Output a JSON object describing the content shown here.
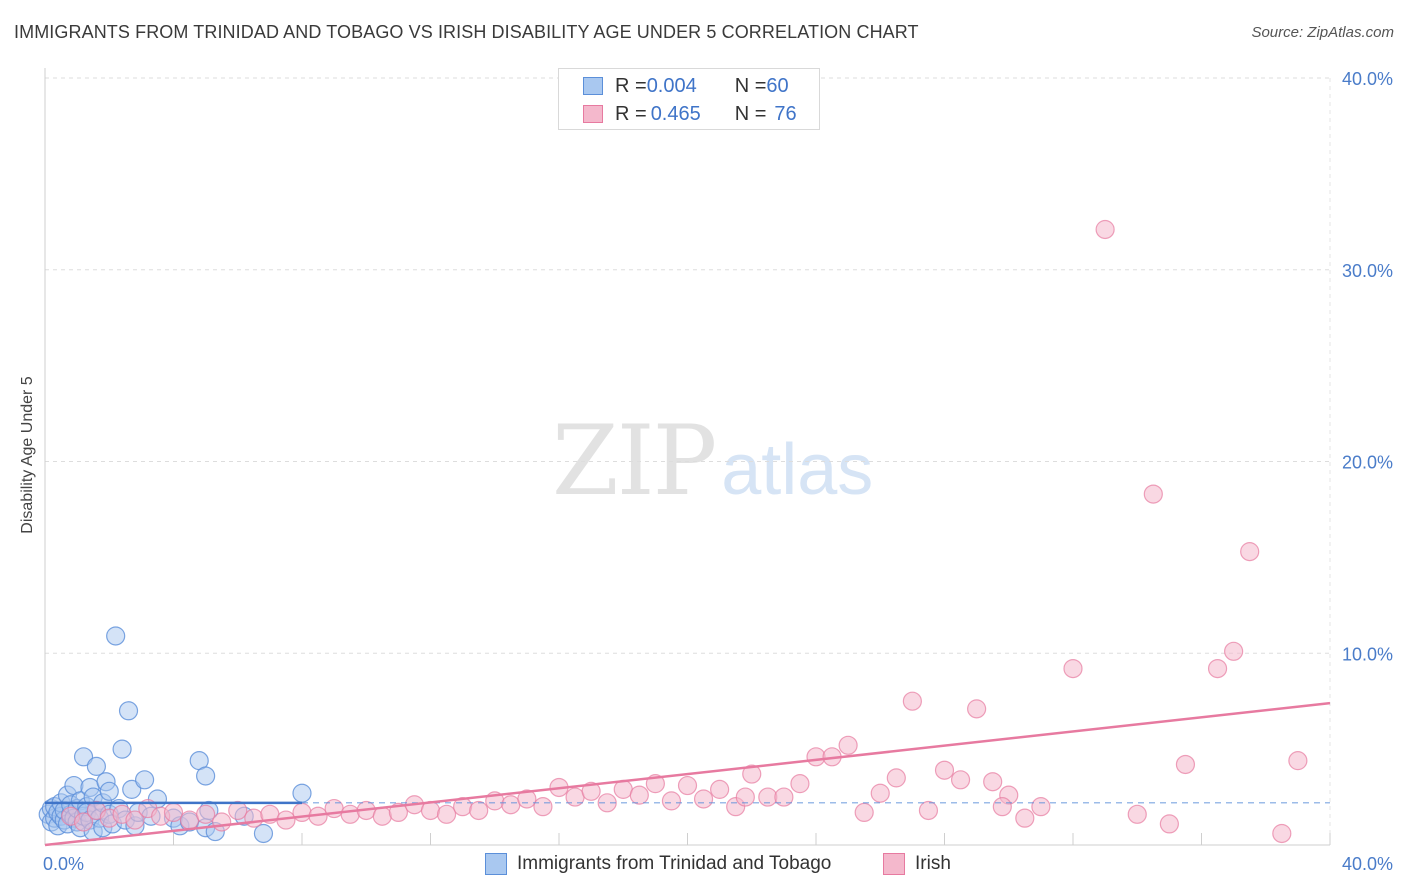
{
  "title": "IMMIGRANTS FROM TRINIDAD AND TOBAGO VS IRISH DISABILITY AGE UNDER 5 CORRELATION CHART",
  "source": "Source: ZipAtlas.com",
  "watermark": {
    "zip": "ZIP",
    "atlas": "atlas"
  },
  "legend": {
    "rows": [
      {
        "r_label": "R = ",
        "r_value": "0.004",
        "n_label": "N = ",
        "n_value": "60"
      },
      {
        "r_label": "R = ",
        "r_value": "0.465",
        "n_label": "N = ",
        "n_value": "76"
      }
    ]
  },
  "bottom_legend": [
    "Immigrants from Trinidad and Tobago",
    "Irish"
  ],
  "chart_data": {
    "type": "scatter",
    "ylabel": "Disability Age Under 5",
    "xlim": [
      0,
      40
    ],
    "ylim": [
      0,
      40
    ],
    "x_tick_labels": [
      "0.0%",
      "40.0%"
    ],
    "y_tick_labels": [
      "10.0%",
      "20.0%",
      "30.0%",
      "40.0%"
    ],
    "y_ticks": [
      10,
      20,
      30,
      40
    ],
    "grid": true,
    "legend_position": "top-center",
    "colors": {
      "blue": "#5b8fd9",
      "blue_fill": "#a9c8f0",
      "pink": "#e77aa0",
      "pink_fill": "#f4b8cc"
    },
    "series": [
      {
        "name": "Immigrants from Trinidad and Tobago",
        "color": "#5b8fd9",
        "trend": {
          "x": [
            0,
            8
          ],
          "y": [
            2.2,
            2.2
          ],
          "dashed_extension_to": 40
        },
        "points": [
          [
            0.1,
            1.6
          ],
          [
            0.2,
            1.2
          ],
          [
            0.2,
            1.9
          ],
          [
            0.3,
            1.4
          ],
          [
            0.3,
            2.0
          ],
          [
            0.4,
            1.0
          ],
          [
            0.4,
            1.7
          ],
          [
            0.5,
            1.5
          ],
          [
            0.5,
            2.2
          ],
          [
            0.6,
            1.3
          ],
          [
            0.6,
            1.8
          ],
          [
            0.7,
            1.1
          ],
          [
            0.7,
            2.6
          ],
          [
            0.8,
            1.6
          ],
          [
            0.8,
            2.1
          ],
          [
            0.9,
            1.4
          ],
          [
            0.9,
            3.1
          ],
          [
            1.0,
            1.2
          ],
          [
            1.0,
            1.9
          ],
          [
            1.1,
            2.3
          ],
          [
            1.1,
            0.9
          ],
          [
            1.2,
            1.5
          ],
          [
            1.2,
            4.6
          ],
          [
            1.3,
            2.0
          ],
          [
            1.3,
            1.7
          ],
          [
            1.4,
            3.0
          ],
          [
            1.4,
            1.3
          ],
          [
            1.5,
            2.5
          ],
          [
            1.5,
            0.7
          ],
          [
            1.6,
            1.8
          ],
          [
            1.6,
            4.1
          ],
          [
            1.7,
            1.4
          ],
          [
            1.8,
            2.2
          ],
          [
            1.8,
            0.9
          ],
          [
            1.9,
            3.3
          ],
          [
            2.0,
            1.6
          ],
          [
            2.0,
            2.8
          ],
          [
            2.1,
            1.1
          ],
          [
            2.2,
            10.9
          ],
          [
            2.3,
            1.9
          ],
          [
            2.4,
            5.0
          ],
          [
            2.5,
            1.3
          ],
          [
            2.6,
            7.0
          ],
          [
            2.7,
            2.9
          ],
          [
            2.8,
            1.0
          ],
          [
            2.9,
            1.7
          ],
          [
            3.1,
            3.4
          ],
          [
            3.3,
            1.5
          ],
          [
            3.5,
            2.4
          ],
          [
            4.0,
            1.4
          ],
          [
            4.2,
            1.0
          ],
          [
            4.5,
            1.2
          ],
          [
            5.0,
            0.9
          ],
          [
            4.8,
            4.4
          ],
          [
            5.0,
            3.6
          ],
          [
            5.1,
            1.8
          ],
          [
            5.3,
            0.7
          ],
          [
            6.2,
            1.5
          ],
          [
            6.8,
            0.6
          ],
          [
            8.0,
            2.7
          ]
        ]
      },
      {
        "name": "Irish",
        "color": "#e77aa0",
        "trend": {
          "x": [
            0,
            40
          ],
          "y": [
            0,
            7.4
          ]
        },
        "points": [
          [
            0.8,
            1.5
          ],
          [
            1.2,
            1.2
          ],
          [
            1.6,
            1.8
          ],
          [
            2.0,
            1.4
          ],
          [
            2.4,
            1.6
          ],
          [
            2.8,
            1.3
          ],
          [
            3.2,
            1.9
          ],
          [
            3.6,
            1.5
          ],
          [
            4.0,
            1.7
          ],
          [
            4.5,
            1.3
          ],
          [
            5.0,
            1.6
          ],
          [
            5.5,
            1.2
          ],
          [
            6.0,
            1.8
          ],
          [
            6.5,
            1.4
          ],
          [
            7.0,
            1.6
          ],
          [
            7.5,
            1.3
          ],
          [
            8.0,
            1.7
          ],
          [
            8.5,
            1.5
          ],
          [
            9.0,
            1.9
          ],
          [
            9.5,
            1.6
          ],
          [
            10.0,
            1.8
          ],
          [
            10.5,
            1.5
          ],
          [
            11.0,
            1.7
          ],
          [
            11.5,
            2.1
          ],
          [
            12.0,
            1.8
          ],
          [
            12.5,
            1.6
          ],
          [
            13.0,
            2.0
          ],
          [
            13.5,
            1.8
          ],
          [
            14.0,
            2.3
          ],
          [
            14.5,
            2.1
          ],
          [
            15.0,
            2.4
          ],
          [
            15.5,
            2.0
          ],
          [
            16.0,
            3.0
          ],
          [
            16.5,
            2.5
          ],
          [
            17.0,
            2.8
          ],
          [
            17.5,
            2.2
          ],
          [
            18.0,
            2.9
          ],
          [
            18.5,
            2.6
          ],
          [
            19.0,
            3.2
          ],
          [
            19.5,
            2.3
          ],
          [
            20.0,
            3.1
          ],
          [
            20.5,
            2.4
          ],
          [
            21.0,
            2.9
          ],
          [
            21.5,
            2.0
          ],
          [
            22.0,
            3.7
          ],
          [
            22.5,
            2.5
          ],
          [
            23.0,
            2.5
          ],
          [
            23.5,
            3.2
          ],
          [
            24.0,
            4.6
          ],
          [
            24.5,
            4.6
          ],
          [
            25.0,
            5.2
          ],
          [
            25.5,
            1.7
          ],
          [
            26.0,
            2.7
          ],
          [
            26.5,
            3.5
          ],
          [
            27.0,
            7.5
          ],
          [
            27.5,
            1.8
          ],
          [
            28.0,
            3.9
          ],
          [
            28.5,
            3.4
          ],
          [
            29.0,
            7.1
          ],
          [
            29.5,
            3.3
          ],
          [
            30.0,
            2.6
          ],
          [
            30.5,
            1.4
          ],
          [
            31.0,
            2.0
          ],
          [
            32.0,
            9.2
          ],
          [
            33.0,
            32.1
          ],
          [
            34.0,
            1.6
          ],
          [
            34.5,
            18.3
          ],
          [
            35.0,
            1.1
          ],
          [
            35.5,
            4.2
          ],
          [
            36.5,
            9.2
          ],
          [
            37.0,
            10.1
          ],
          [
            37.5,
            15.3
          ],
          [
            38.5,
            0.6
          ],
          [
            39.0,
            4.4
          ],
          [
            29.8,
            2.0
          ],
          [
            21.8,
            2.5
          ]
        ]
      }
    ]
  }
}
